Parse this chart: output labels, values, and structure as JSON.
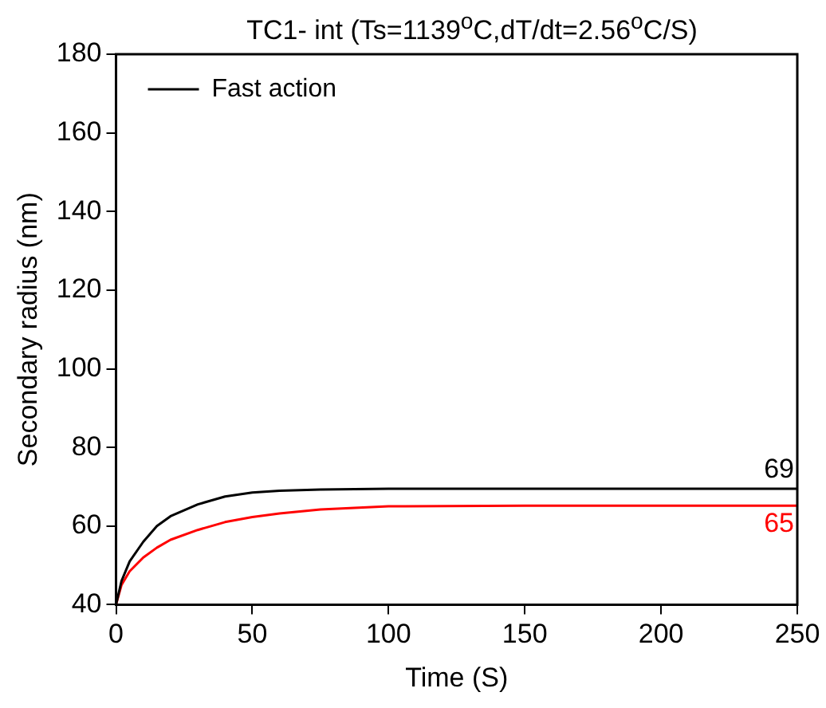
{
  "chart_data": {
    "type": "line",
    "title": "TC1- int (Ts=1139$^{o}$C,dT/dt=2.56$^{o}$C/S)",
    "xlabel": "Time (S)",
    "ylabel": "Secondary radius (nm)",
    "xlim": [
      0,
      250
    ],
    "xticks": [
      0,
      50,
      100,
      150,
      200,
      250
    ],
    "ylim": [
      40,
      180
    ],
    "yticks": [
      40,
      60,
      80,
      100,
      120,
      140,
      160,
      180
    ],
    "grid": false,
    "legend": "top left",
    "marker": "none",
    "line_style": "solid",
    "series": [
      {
        "name": "Fast action",
        "color": "#000000",
        "x": [
          0,
          2,
          5,
          10,
          15,
          20,
          30,
          40,
          50,
          60,
          75,
          100,
          150,
          200,
          250
        ],
        "values": [
          40,
          46,
          51,
          56,
          60,
          62.5,
          65.5,
          67.5,
          68.5,
          69,
          69.3,
          69.5,
          69.5,
          69.5,
          69.5
        ],
        "value_labels": [
          null,
          null,
          null,
          null,
          null,
          null,
          null,
          null,
          null,
          null,
          null,
          null,
          null,
          null,
          "69"
        ]
      },
      {
        "color": "#ff0000",
        "x": [
          0,
          2,
          5,
          10,
          15,
          20,
          30,
          40,
          50,
          60,
          75,
          100,
          150,
          200,
          250
        ],
        "values": [
          40,
          45,
          48.5,
          52,
          54.5,
          56.5,
          59,
          61,
          62.3,
          63.2,
          64.2,
          65,
          65.2,
          65.2,
          65.2
        ],
        "value_labels": [
          null,
          null,
          null,
          null,
          null,
          null,
          null,
          null,
          null,
          null,
          null,
          null,
          null,
          null,
          "65"
        ]
      }
    ]
  }
}
